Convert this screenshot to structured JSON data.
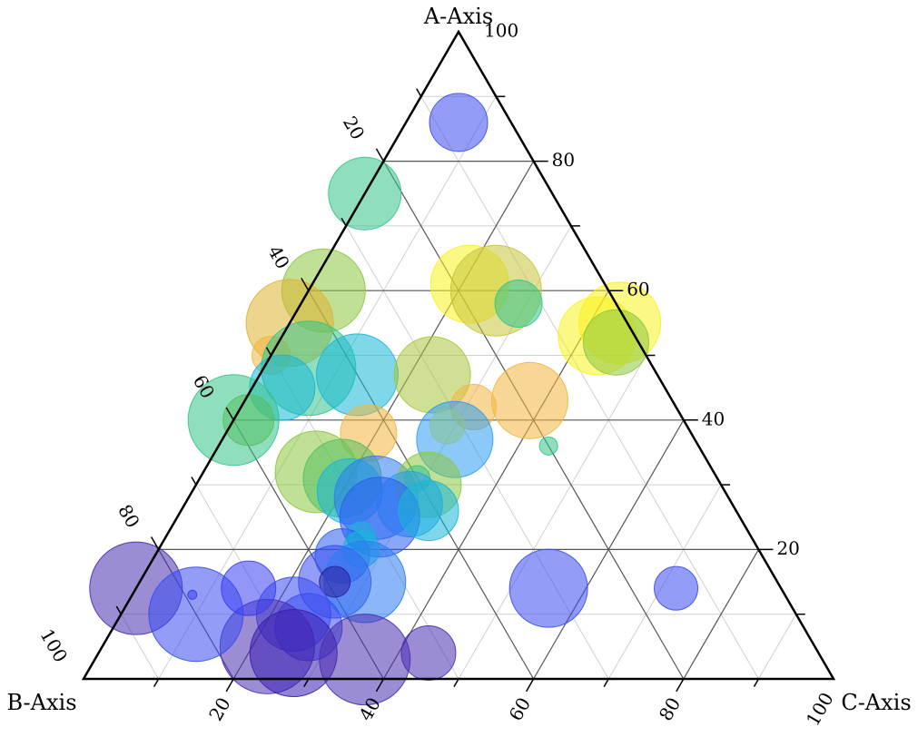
{
  "chart_data": {
    "type": "ternary-bubble",
    "axes": {
      "a": {
        "title": "A-Axis",
        "ticks": [
          "20",
          "40",
          "60",
          "80",
          "100"
        ]
      },
      "b": {
        "title": "B-Axis",
        "ticks": [
          "20",
          "40",
          "60",
          "80",
          "100"
        ]
      },
      "c": {
        "title": "C-Axis",
        "ticks": [
          "20",
          "40",
          "60",
          "80",
          "100"
        ]
      }
    },
    "range": [
      0,
      100
    ],
    "grid": {
      "major_step": 20,
      "minor_step": 10
    },
    "color_scale": [
      "#2b1d9f",
      "#3a3ef0",
      "#2b7cf2",
      "#16b6d8",
      "#33c48a",
      "#8cc63f",
      "#c9c43a",
      "#f2b640",
      "#f7f21e"
    ],
    "points": [
      {
        "a": 86,
        "c": 7,
        "size": 32,
        "color": "#3a4cf0"
      },
      {
        "a": 75,
        "c": 0,
        "size": 40,
        "color": "#33c48a"
      },
      {
        "a": 60,
        "c": 2,
        "size": 46,
        "color": "#8cc63f"
      },
      {
        "a": 61,
        "c": 21,
        "size": 43,
        "color": "#f7f21e"
      },
      {
        "a": 60,
        "c": 25,
        "size": 50,
        "color": "#c9c43a"
      },
      {
        "a": 58,
        "c": 29,
        "size": 26,
        "color": "#33c48a"
      },
      {
        "a": 55,
        "c": 0,
        "size": 48,
        "color": "#e0b330"
      },
      {
        "a": 50,
        "c": 0,
        "size": 21,
        "color": "#f2b640"
      },
      {
        "a": 48,
        "c": 6,
        "size": 52,
        "color": "#33c48a"
      },
      {
        "a": 47,
        "c": 13,
        "size": 45,
        "color": "#16b6d8"
      },
      {
        "a": 47,
        "c": 23,
        "size": 42,
        "color": "#a8c43a"
      },
      {
        "a": 45,
        "c": 4,
        "size": 36,
        "color": "#16b6d8"
      },
      {
        "a": 40,
        "c": 0,
        "size": 50,
        "color": "#33c48a"
      },
      {
        "a": 40,
        "c": 2,
        "size": 28,
        "color": "#55c060"
      },
      {
        "a": 53,
        "c": 42,
        "size": 43,
        "color": "#f7f21e"
      },
      {
        "a": 55,
        "c": 44,
        "size": 45,
        "color": "#f7f21e"
      },
      {
        "a": 52,
        "c": 45,
        "size": 36,
        "color": "#8cc63f"
      },
      {
        "a": 43,
        "c": 38,
        "size": 42,
        "color": "#f2b640"
      },
      {
        "a": 42,
        "c": 31,
        "size": 25,
        "color": "#f2b640"
      },
      {
        "a": 39,
        "c": 29,
        "size": 19,
        "color": "#f7f21e"
      },
      {
        "a": 36,
        "c": 44,
        "size": 10,
        "color": "#33c48a"
      },
      {
        "a": 38,
        "c": 19,
        "size": 31,
        "color": "#f2b640"
      },
      {
        "a": 32,
        "c": 15,
        "size": 45,
        "color": "#8cc63f"
      },
      {
        "a": 31,
        "c": 19,
        "size": 43,
        "color": "#55c060"
      },
      {
        "a": 37,
        "c": 31,
        "size": 42,
        "color": "#2b9df2"
      },
      {
        "a": 29,
        "c": 21,
        "size": 36,
        "color": "#16b6d8"
      },
      {
        "a": 28,
        "c": 25,
        "size": 46,
        "color": "#2b7cf2"
      },
      {
        "a": 30,
        "c": 31,
        "size": 36,
        "color": "#8cc63f"
      },
      {
        "a": 31,
        "c": 29,
        "size": 14,
        "color": "#33c48a"
      },
      {
        "a": 27,
        "c": 30,
        "size": 36,
        "color": "#2b9df2"
      },
      {
        "a": 25,
        "c": 27,
        "size": 44,
        "color": "#2b5cf2"
      },
      {
        "a": 26,
        "c": 33,
        "size": 33,
        "color": "#16b6d8"
      },
      {
        "a": 22,
        "c": 26,
        "size": 16,
        "color": "#16b6d8"
      },
      {
        "a": 19,
        "c": 25,
        "size": 30,
        "color": "#2b5cf2"
      },
      {
        "a": 20,
        "c": 27,
        "size": 20,
        "color": "#16b6d8"
      },
      {
        "a": 15,
        "c": 26,
        "size": 40,
        "color": "#3a4cf0"
      },
      {
        "a": 15,
        "c": 30,
        "size": 45,
        "color": "#2b7cf2"
      },
      {
        "a": 15,
        "c": 26,
        "size": 17,
        "color": "#2b1d9f"
      },
      {
        "a": 10,
        "c": 23,
        "size": 41,
        "color": "#3a4cf0"
      },
      {
        "a": 8,
        "c": 26,
        "size": 37,
        "color": "#3a4cf0"
      },
      {
        "a": 5,
        "c": 22,
        "size": 52,
        "color": "#4a2db0"
      },
      {
        "a": 4,
        "c": 26,
        "size": 48,
        "color": "#3a1db0"
      },
      {
        "a": 3,
        "c": 36,
        "size": 50,
        "color": "#4a2db0"
      },
      {
        "a": 4,
        "c": 44,
        "size": 30,
        "color": "#4a2db0"
      },
      {
        "a": 14,
        "c": 55,
        "size": 43,
        "color": "#3a4cf0"
      },
      {
        "a": 14,
        "c": 72,
        "size": 24,
        "color": "#3a4cf0"
      },
      {
        "a": 14,
        "c": 0,
        "size": 51,
        "color": "#4a2db0"
      },
      {
        "a": 10,
        "c": 10,
        "size": 52,
        "color": "#3a4cf0"
      },
      {
        "a": 14,
        "c": 15,
        "size": 30,
        "color": "#3a3ef0"
      },
      {
        "a": 13,
        "c": 8,
        "size": 5,
        "color": "#3a3ef0"
      }
    ]
  }
}
